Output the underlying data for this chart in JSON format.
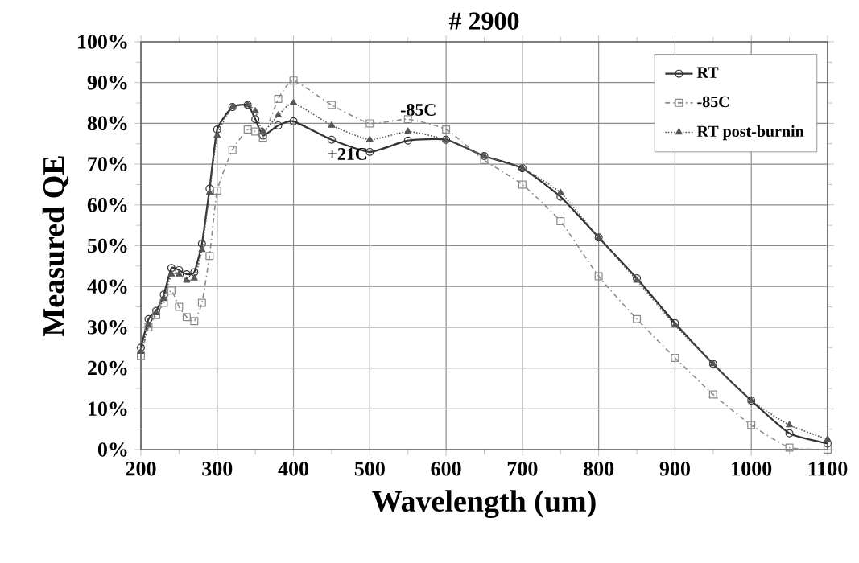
{
  "chart_data": {
    "type": "line",
    "title": "# 2900",
    "xlabel": "Wavelength (um)",
    "ylabel": "Measured QE",
    "x": [
      200,
      210,
      220,
      230,
      240,
      250,
      260,
      270,
      280,
      290,
      300,
      320,
      340,
      350,
      360,
      380,
      400,
      450,
      500,
      550,
      600,
      650,
      700,
      750,
      800,
      850,
      900,
      950,
      1000,
      1050,
      1100
    ],
    "series": [
      {
        "name": "RT",
        "color": "#333333",
        "marker": "circle",
        "line_style": "solid",
        "values": [
          25,
          32,
          34,
          38,
          44.5,
          44,
          43,
          43.5,
          50.5,
          64,
          78.5,
          84,
          84.5,
          81,
          77,
          79.5,
          80.5,
          76,
          73,
          75.8,
          76,
          72,
          69,
          62,
          52,
          42,
          31,
          21,
          12,
          4,
          1.5
        ]
      },
      {
        "name": "-85C",
        "color": "#8a8a8a",
        "marker": "square",
        "line_style": "dashed",
        "values": [
          23,
          30,
          33,
          36,
          39,
          35,
          32.5,
          31.5,
          36,
          47.5,
          63.5,
          73.5,
          78.5,
          78,
          76.5,
          86,
          90.5,
          84.5,
          80,
          81,
          78.5,
          71,
          65,
          56,
          42.5,
          32,
          22.5,
          13.5,
          6,
          0.5,
          0
        ]
      },
      {
        "name": "RT post-burnin",
        "color": "#555555",
        "marker": "triangle",
        "line_style": "dotted",
        "values": [
          24,
          30.5,
          33.5,
          37,
          43,
          43,
          41.5,
          42,
          49,
          63,
          77,
          84,
          84.5,
          83,
          78,
          82,
          85,
          79.5,
          76,
          78,
          76,
          72,
          69,
          63,
          52,
          41.5,
          30.5,
          21,
          12,
          6,
          2.5
        ]
      }
    ],
    "annotations": [
      {
        "text": "+21C",
        "x": 450,
        "y": 76
      },
      {
        "text": "-85C",
        "x": 550,
        "y": 81
      }
    ],
    "xlim": [
      200,
      1100
    ],
    "xticks": [
      200,
      300,
      400,
      500,
      600,
      700,
      800,
      900,
      1000,
      1100
    ],
    "ylim": [
      0,
      100
    ],
    "yticks": [
      {
        "value": 0,
        "label": "0%"
      },
      {
        "value": 10,
        "label": "10%"
      },
      {
        "value": 20,
        "label": "20%"
      },
      {
        "value": 30,
        "label": "30%"
      },
      {
        "value": 40,
        "label": "40%"
      },
      {
        "value": 50,
        "label": "50%"
      },
      {
        "value": 60,
        "label": "60%"
      },
      {
        "value": 70,
        "label": "70%"
      },
      {
        "value": 80,
        "label": "80%"
      },
      {
        "value": 90,
        "label": "90%"
      },
      {
        "value": 100,
        "label": "100%"
      }
    ],
    "grid": true,
    "legend": "top right"
  }
}
